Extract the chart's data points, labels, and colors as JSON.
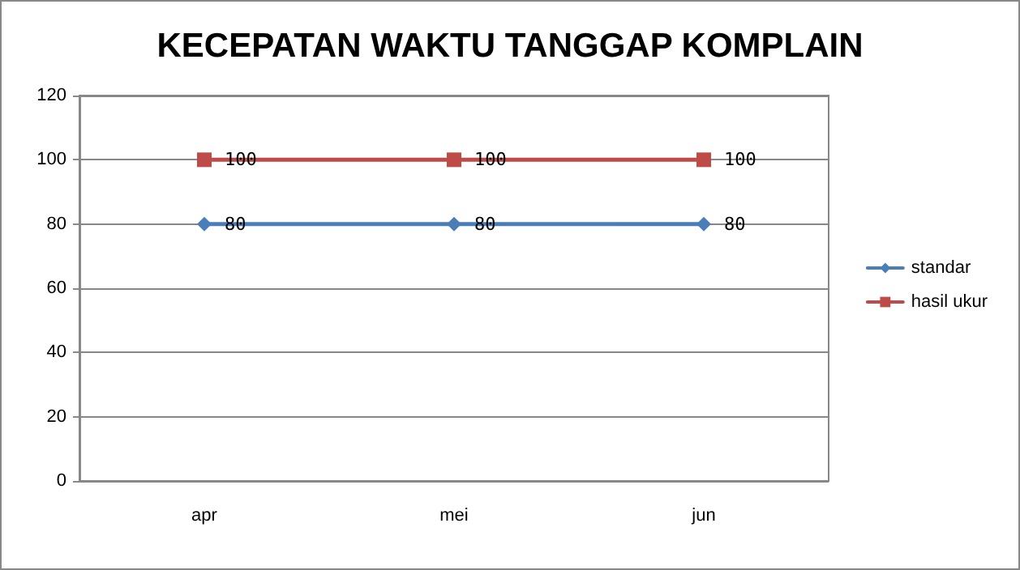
{
  "chart_data": {
    "type": "line",
    "title": "KECEPATAN WAKTU TANGGAP KOMPLAIN",
    "categories": [
      "apr",
      "mei",
      "jun"
    ],
    "series": [
      {
        "name": "standar",
        "color": "#4a7ebb",
        "values": [
          80,
          80,
          80
        ],
        "marker": "diamond"
      },
      {
        "name": "hasil ukur",
        "color": "#be4b48",
        "values": [
          100,
          100,
          100
        ],
        "marker": "square"
      }
    ],
    "ylim": [
      0,
      120
    ],
    "yticks": [
      0,
      20,
      40,
      60,
      80,
      100,
      120
    ],
    "grid": "y",
    "legend": "right",
    "data_labels": true
  }
}
